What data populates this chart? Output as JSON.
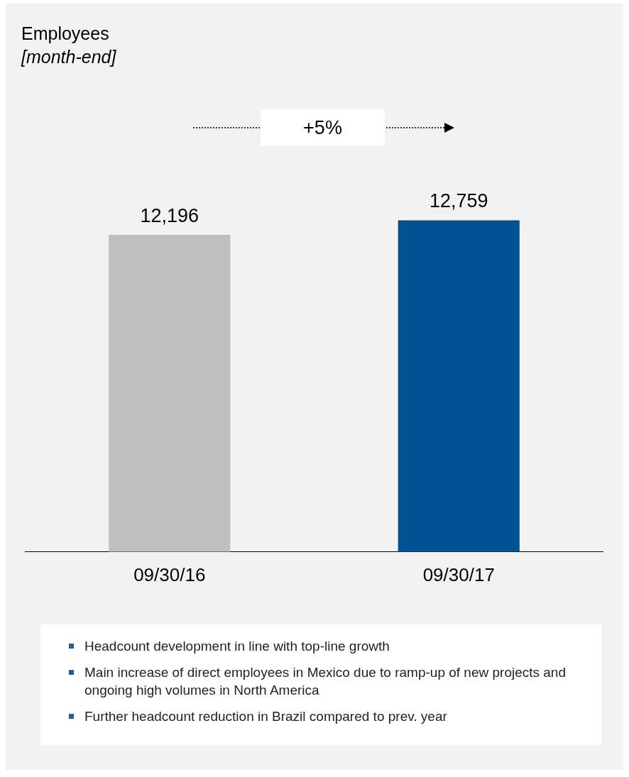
{
  "chart_data": {
    "type": "bar",
    "title": "Employees",
    "subtitle": "[month-end]",
    "categories": [
      "09/30/16",
      "09/30/17"
    ],
    "values": [
      12196,
      12759
    ],
    "colors": [
      "#bfbfbf",
      "#005293"
    ],
    "value_labels": [
      "12,196",
      "12,759"
    ],
    "grid": false,
    "legend": false,
    "annotations": [
      "+5%",
      "Headcount development in line with top-line growth",
      "Main increase of direct employees in Mexico due to ramp-up of new projects and ongoing high volumes in North America",
      "Further headcount reduction in Brazil compared to prev. year"
    ]
  }
}
